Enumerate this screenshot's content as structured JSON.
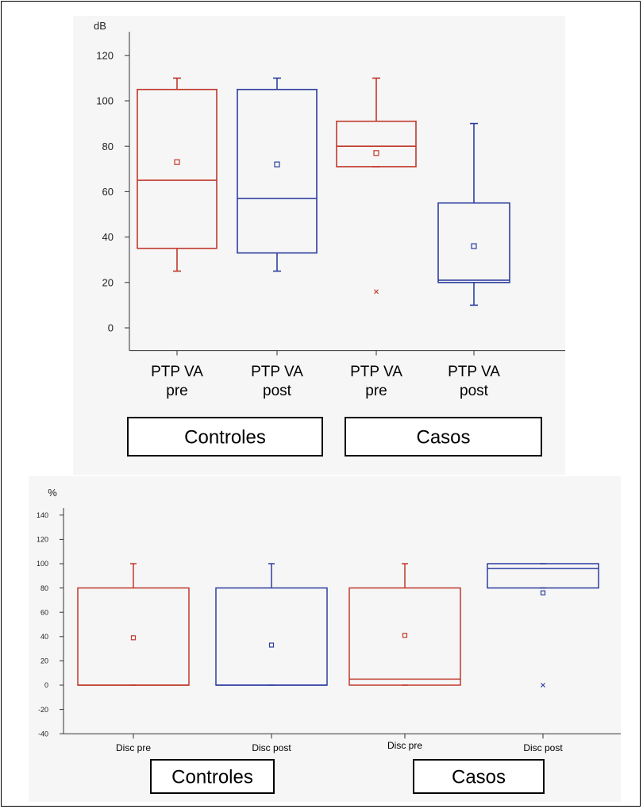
{
  "chart_data": [
    {
      "type": "box",
      "ylabel": "dB",
      "ylim": [
        -10,
        125
      ],
      "yticks": [
        0,
        20,
        40,
        60,
        80,
        100,
        120
      ],
      "categories": [
        {
          "lines": [
            "PTP VA",
            "pre"
          ]
        },
        {
          "lines": [
            "PTP VA",
            "post"
          ]
        },
        {
          "lines": [
            "PTP VA",
            "pre"
          ]
        },
        {
          "lines": [
            "PTP VA",
            "post"
          ]
        }
      ],
      "groups": [
        {
          "label": "Controles",
          "members": [
            0,
            1
          ]
        },
        {
          "label": "Casos",
          "members": [
            2,
            3
          ]
        }
      ],
      "boxes": [
        {
          "color": "#c0392b",
          "whisker_low": 25,
          "q1": 35,
          "median": 65,
          "q3": 105,
          "whisker_high": 110,
          "mean": 73,
          "outliers": []
        },
        {
          "color": "#2e3fa0",
          "whisker_low": 25,
          "q1": 33,
          "median": 57,
          "q3": 105,
          "whisker_high": 110,
          "mean": 72,
          "outliers": []
        },
        {
          "color": "#c0392b",
          "whisker_low": 71,
          "q1": 71,
          "median": 80,
          "q3": 91,
          "whisker_high": 110,
          "mean": 77,
          "outliers": [
            16
          ]
        },
        {
          "color": "#2e3fa0",
          "whisker_low": 10,
          "q1": 20,
          "median": 21,
          "q3": 55,
          "whisker_high": 90,
          "mean": 36,
          "outliers": []
        }
      ]
    },
    {
      "type": "box",
      "ylabel": "%",
      "ylim": [
        -40,
        140
      ],
      "yticks": [
        -40,
        -20,
        0,
        20,
        40,
        60,
        80,
        100,
        120,
        140
      ],
      "categories": [
        {
          "lines": [
            "Disc pre"
          ]
        },
        {
          "lines": [
            "Disc post"
          ]
        },
        {
          "lines": [
            "Disc pre"
          ]
        },
        {
          "lines": [
            "Disc post"
          ]
        }
      ],
      "groups": [
        {
          "label": "Controles",
          "members": [
            0,
            1
          ]
        },
        {
          "label": "Casos",
          "members": [
            2,
            3
          ]
        }
      ],
      "boxes": [
        {
          "color": "#c0392b",
          "whisker_low": 0,
          "q1": 0,
          "median": 0,
          "q3": 80,
          "whisker_high": 100,
          "mean": 39,
          "outliers": []
        },
        {
          "color": "#2e3fa0",
          "whisker_low": 0,
          "q1": 0,
          "median": 0,
          "q3": 80,
          "whisker_high": 100,
          "mean": 33,
          "outliers": []
        },
        {
          "color": "#c0392b",
          "whisker_low": 0,
          "q1": 0,
          "median": 5,
          "q3": 80,
          "whisker_high": 100,
          "mean": 41,
          "outliers": []
        },
        {
          "color": "#2e3fa0",
          "whisker_low": 80,
          "q1": 80,
          "median": 96,
          "q3": 100,
          "whisker_high": 100,
          "mean": 76,
          "outliers": [
            0
          ]
        }
      ]
    }
  ]
}
